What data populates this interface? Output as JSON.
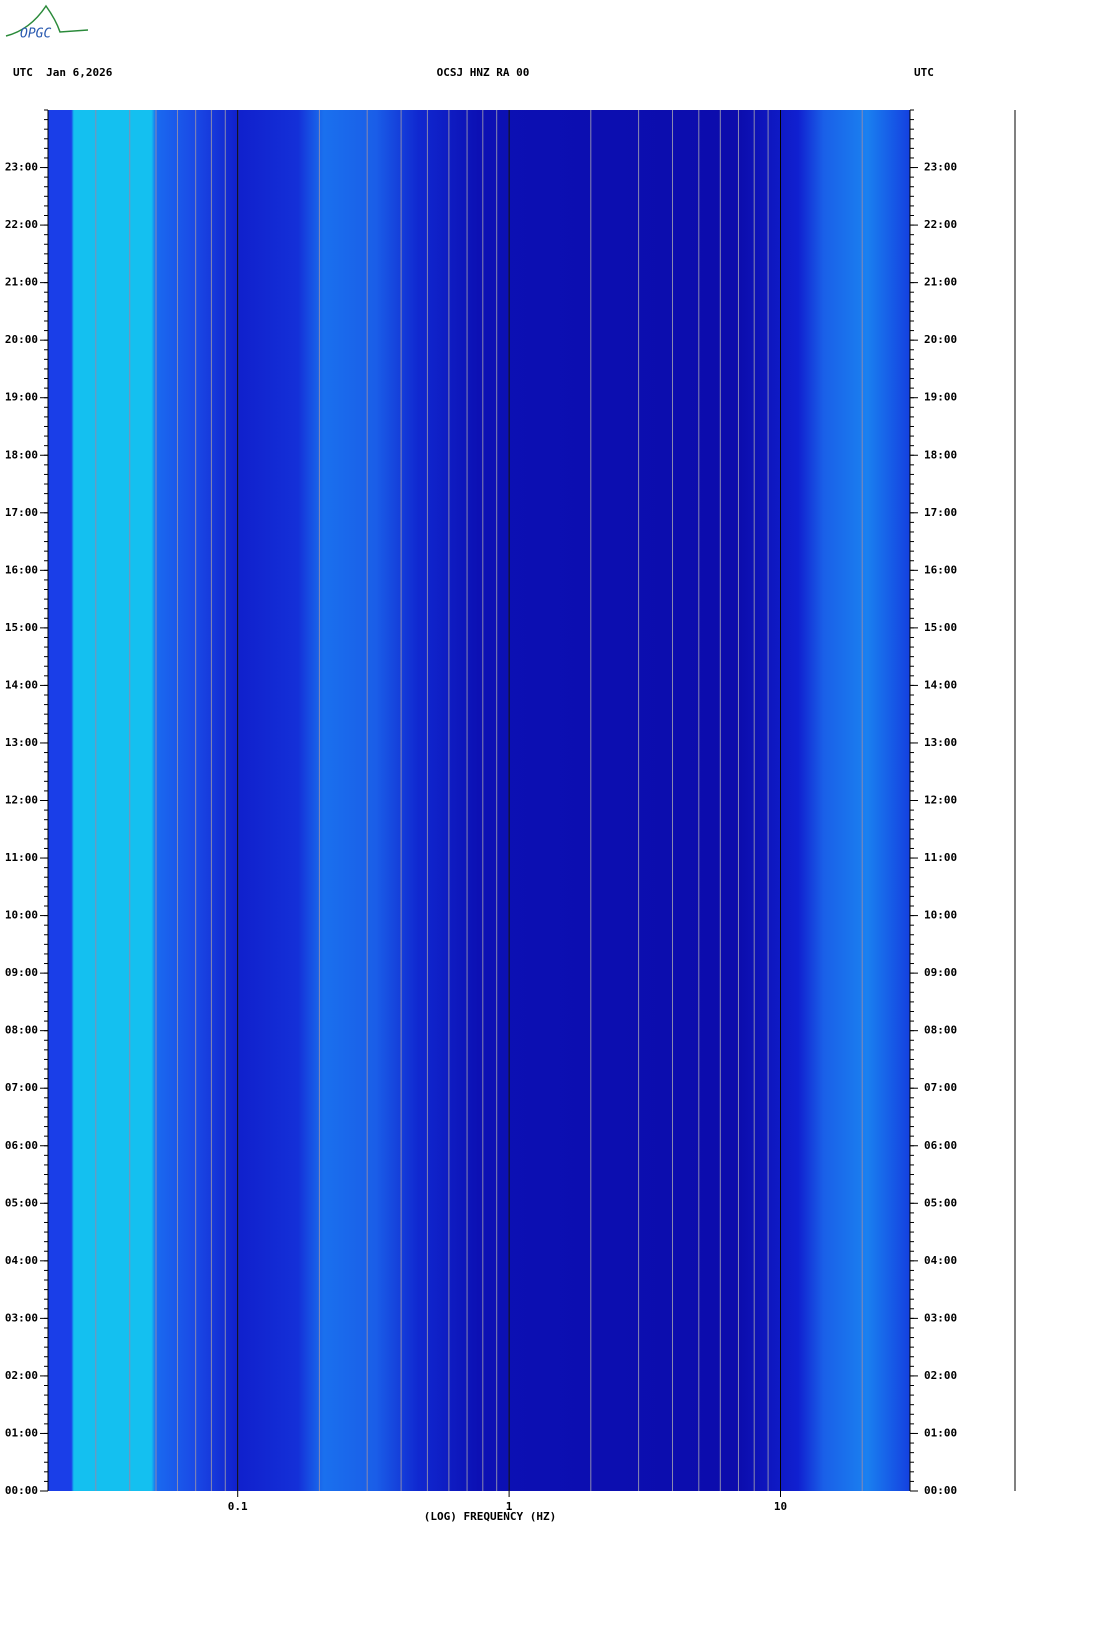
{
  "logo": "OPGC",
  "chart_data": {
    "type": "spectrogram",
    "header_left": "UTC  Jan 6,2026",
    "title": "OCSJ HNZ RA 00",
    "header_right": "UTC",
    "xlabel": "(LOG) FREQUENCY (HZ)",
    "log_x": true,
    "xlim": [
      0.02,
      30
    ],
    "xticks": [
      0.1,
      1,
      10
    ],
    "ylim": [
      0,
      24
    ],
    "yticks": [
      {
        "value": 0,
        "label": "00:00"
      },
      {
        "value": 1,
        "label": "01:00"
      },
      {
        "value": 2,
        "label": "02:00"
      },
      {
        "value": 3,
        "label": "03:00"
      },
      {
        "value": 4,
        "label": "04:00"
      },
      {
        "value": 5,
        "label": "05:00"
      },
      {
        "value": 6,
        "label": "06:00"
      },
      {
        "value": 7,
        "label": "07:00"
      },
      {
        "value": 8,
        "label": "08:00"
      },
      {
        "value": 9,
        "label": "09:00"
      },
      {
        "value": 10,
        "label": "10:00"
      },
      {
        "value": 11,
        "label": "11:00"
      },
      {
        "value": 12,
        "label": "12:00"
      },
      {
        "value": 13,
        "label": "13:00"
      },
      {
        "value": 14,
        "label": "14:00"
      },
      {
        "value": 15,
        "label": "15:00"
      },
      {
        "value": 16,
        "label": "16:00"
      },
      {
        "value": 17,
        "label": "17:00"
      },
      {
        "value": 18,
        "label": "18:00"
      },
      {
        "value": 19,
        "label": "19:00"
      },
      {
        "value": 20,
        "label": "20:00"
      },
      {
        "value": 21,
        "label": "21:00"
      },
      {
        "value": 22,
        "label": "22:00"
      },
      {
        "value": 23,
        "label": "23:00"
      }
    ]
  }
}
